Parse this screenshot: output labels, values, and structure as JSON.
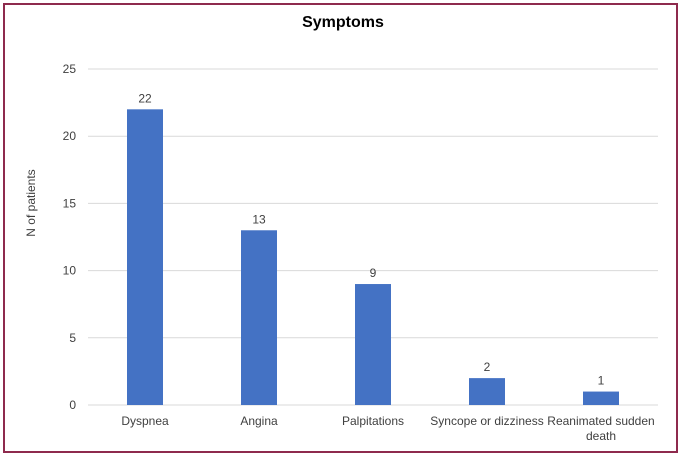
{
  "chart_data": {
    "type": "bar",
    "title": "Symptoms",
    "xlabel": "",
    "ylabel": "N of patients",
    "ylim": [
      0,
      25
    ],
    "yticks": [
      0,
      5,
      10,
      15,
      20,
      25
    ],
    "grid": true,
    "legend": "none",
    "categories": [
      [
        "Dyspnea"
      ],
      [
        "Angina"
      ],
      [
        "Palpitations"
      ],
      [
        "Syncope or dizziness"
      ],
      [
        "Reanimated sudden",
        "death"
      ]
    ],
    "values": [
      22,
      13,
      9,
      2,
      1
    ],
    "data_labels": [
      "22",
      "13",
      "9",
      "2",
      "1"
    ],
    "colors": {
      "bar": "#4472c4",
      "border": "#8e2a4d",
      "grid": "#d9d9d9"
    }
  }
}
